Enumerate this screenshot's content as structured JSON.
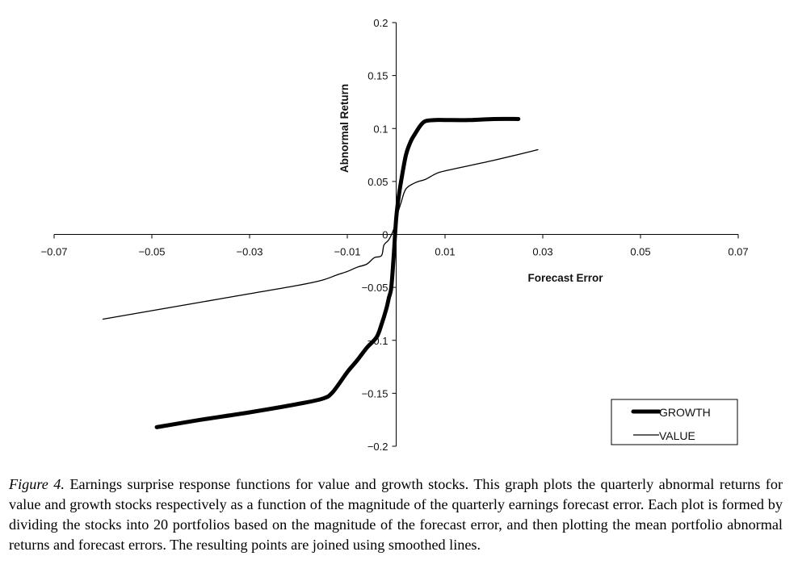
{
  "chart_data": {
    "type": "line",
    "xlabel": "Forecast Error",
    "ylabel": "Abnormal Return",
    "xlim": [
      -0.07,
      0.07
    ],
    "ylim": [
      -0.2,
      0.2
    ],
    "x_ticks": [
      -0.07,
      -0.05,
      -0.03,
      -0.01,
      0.01,
      0.03,
      0.05,
      0.07
    ],
    "x_tick_labels": [
      "−0.07",
      "−0.05",
      "−0.03",
      "−0.01",
      "0.01",
      "0.03",
      "0.05",
      "0.07"
    ],
    "y_ticks": [
      0.2,
      0.15,
      0.1,
      0.05,
      0,
      -0.05,
      -0.1,
      -0.15,
      -0.2
    ],
    "y_tick_labels": [
      "0.2",
      "0.15",
      "0.1",
      "0.05",
      "0",
      "−0.05",
      "−0.1",
      "−0.15",
      "−0.2"
    ],
    "grid": false,
    "legend_position": "bottom-right",
    "series": [
      {
        "name": "GROWTH",
        "style": "thick",
        "color": "#000000",
        "x": [
          -0.049,
          -0.04,
          -0.03,
          -0.02,
          -0.015,
          -0.013,
          -0.01,
          -0.008,
          -0.006,
          -0.004,
          -0.003,
          -0.002,
          -0.0015,
          -0.001,
          -0.0005,
          0,
          0.0005,
          0.001,
          0.002,
          0.003,
          0.004,
          0.005,
          0.006,
          0.008,
          0.01,
          0.015,
          0.02,
          0.025
        ],
        "y": [
          -0.182,
          -0.175,
          -0.168,
          -0.16,
          -0.155,
          -0.149,
          -0.13,
          -0.119,
          -0.107,
          -0.097,
          -0.085,
          -0.07,
          -0.06,
          -0.05,
          -0.02,
          0.015,
          0.035,
          0.05,
          0.075,
          0.088,
          0.096,
          0.103,
          0.107,
          0.108,
          0.108,
          0.108,
          0.109,
          0.109
        ]
      },
      {
        "name": "VALUE",
        "style": "thin",
        "color": "#000000",
        "x": [
          -0.06,
          -0.05,
          -0.04,
          -0.03,
          -0.02,
          -0.015,
          -0.012,
          -0.01,
          -0.008,
          -0.006,
          -0.0045,
          -0.003,
          -0.0025,
          -0.0015,
          -0.0005,
          0,
          0.001,
          0.002,
          0.004,
          0.006,
          0.008,
          0.01,
          0.02,
          0.029
        ],
        "y": [
          -0.08,
          -0.072,
          -0.064,
          -0.056,
          -0.048,
          -0.043,
          -0.038,
          -0.035,
          -0.031,
          -0.028,
          -0.022,
          -0.02,
          -0.01,
          -0.005,
          0.005,
          0.015,
          0.03,
          0.043,
          0.049,
          0.052,
          0.057,
          0.06,
          0.07,
          0.08
        ]
      }
    ]
  },
  "caption": {
    "label": "Figure 4.",
    "text": "Earnings surprise response functions for value and growth stocks. This graph plots the quarterly abnormal returns for value and growth stocks respectively as a function of the magnitude of the quarterly earnings forecast error. Each plot is formed by dividing the stocks into 20 portfolios based on the magnitude of the forecast error, and then plotting the mean portfolio abnormal returns and forecast errors. The resulting points are joined using smoothed lines."
  }
}
